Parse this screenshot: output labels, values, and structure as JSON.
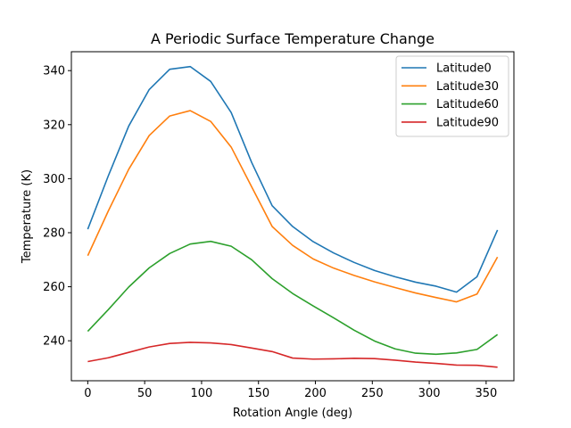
{
  "chart_data": {
    "type": "line",
    "title": "A Periodic Surface Temperature Change",
    "xlabel": "Rotation Angle (deg)",
    "ylabel": "Temperature (K)",
    "xlim": [
      -14.4,
      374.4
    ],
    "ylim": [
      225.2,
      347.0
    ],
    "xticks": [
      0,
      50,
      100,
      150,
      200,
      250,
      300,
      350
    ],
    "yticks": [
      240,
      260,
      280,
      300,
      320,
      340
    ],
    "grid": false,
    "legend_position": "top-right",
    "x": [
      0,
      18,
      36,
      54,
      72,
      90,
      108,
      126,
      144,
      162,
      180,
      198,
      216,
      234,
      252,
      270,
      288,
      306,
      324,
      342,
      360
    ],
    "series": [
      {
        "name": "Latitude0",
        "color": "#1f77b4",
        "values": [
          281.3,
          301.0,
          319.5,
          333.0,
          340.5,
          341.5,
          336.0,
          324.5,
          306.0,
          290.0,
          282.3,
          276.7,
          272.5,
          269.0,
          266.0,
          263.7,
          261.7,
          260.2,
          258.0,
          263.7,
          281.0
        ]
      },
      {
        "name": "Latitude30",
        "color": "#ff7f0e",
        "values": [
          271.5,
          288.0,
          303.5,
          316.0,
          323.2,
          325.2,
          321.2,
          311.7,
          297.0,
          282.3,
          275.3,
          270.3,
          266.9,
          264.2,
          261.8,
          259.7,
          257.7,
          256.0,
          254.4,
          257.3,
          271.0
        ]
      },
      {
        "name": "Latitude60",
        "color": "#2ca02c",
        "values": [
          243.5,
          251.5,
          259.9,
          267.0,
          272.3,
          275.8,
          276.8,
          275.0,
          270.0,
          263.0,
          257.5,
          252.9,
          248.5,
          243.9,
          239.9,
          237.0,
          235.4,
          235.0,
          235.5,
          236.8,
          242.3
        ]
      },
      {
        "name": "Latitude90",
        "color": "#d62728",
        "values": [
          232.3,
          233.7,
          235.7,
          237.7,
          239.0,
          239.4,
          239.2,
          238.6,
          237.3,
          236.0,
          233.6,
          233.2,
          233.3,
          233.5,
          233.4,
          232.8,
          232.1,
          231.6,
          231.0,
          230.9,
          230.2
        ]
      }
    ]
  }
}
